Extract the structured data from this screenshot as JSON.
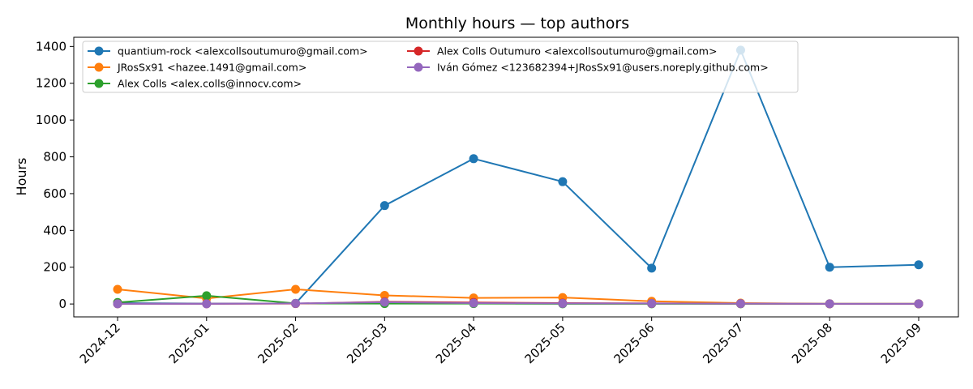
{
  "chart_data": {
    "type": "line",
    "title": "Monthly hours — top authors",
    "xlabel": "",
    "ylabel": "Hours",
    "categories": [
      "2024-12",
      "2025-01",
      "2025-02",
      "2025-03",
      "2025-04",
      "2025-05",
      "2025-06",
      "2025-07",
      "2025-08",
      "2025-09"
    ],
    "yticks": [
      0,
      200,
      400,
      600,
      800,
      1000,
      1200,
      1400
    ],
    "ylim": [
      -70,
      1450
    ],
    "grid": false,
    "legend_position": "top-left",
    "legend_columns": 2,
    "series": [
      {
        "name": "quantium-rock <alexcollsoutumuro@gmail.com>",
        "color": "#1f77b4",
        "values": [
          5,
          2,
          3,
          535,
          790,
          665,
          195,
          1380,
          200,
          213
        ]
      },
      {
        "name": "JRosSx91 <hazee.1491@gmail.com>",
        "color": "#ff7f0e",
        "values": [
          80,
          30,
          80,
          47,
          33,
          35,
          15,
          5,
          1,
          1
        ]
      },
      {
        "name": "Alex Colls <alex.colls@innocv.com>",
        "color": "#2ca02c",
        "values": [
          8,
          45,
          3,
          2,
          2,
          1,
          1,
          1,
          1,
          1
        ]
      },
      {
        "name": "Alex Colls Outumuro <alexcollsoutumuro@gmail.com>",
        "color": "#d62728",
        "values": [
          1,
          1,
          2,
          12,
          8,
          5,
          3,
          2,
          1,
          1
        ]
      },
      {
        "name": "Iván Gómez <123682394+JRosSx91@users.noreply.github.com>",
        "color": "#9467bd",
        "values": [
          1,
          1,
          3,
          10,
          5,
          3,
          3,
          2,
          1,
          1
        ]
      }
    ]
  }
}
